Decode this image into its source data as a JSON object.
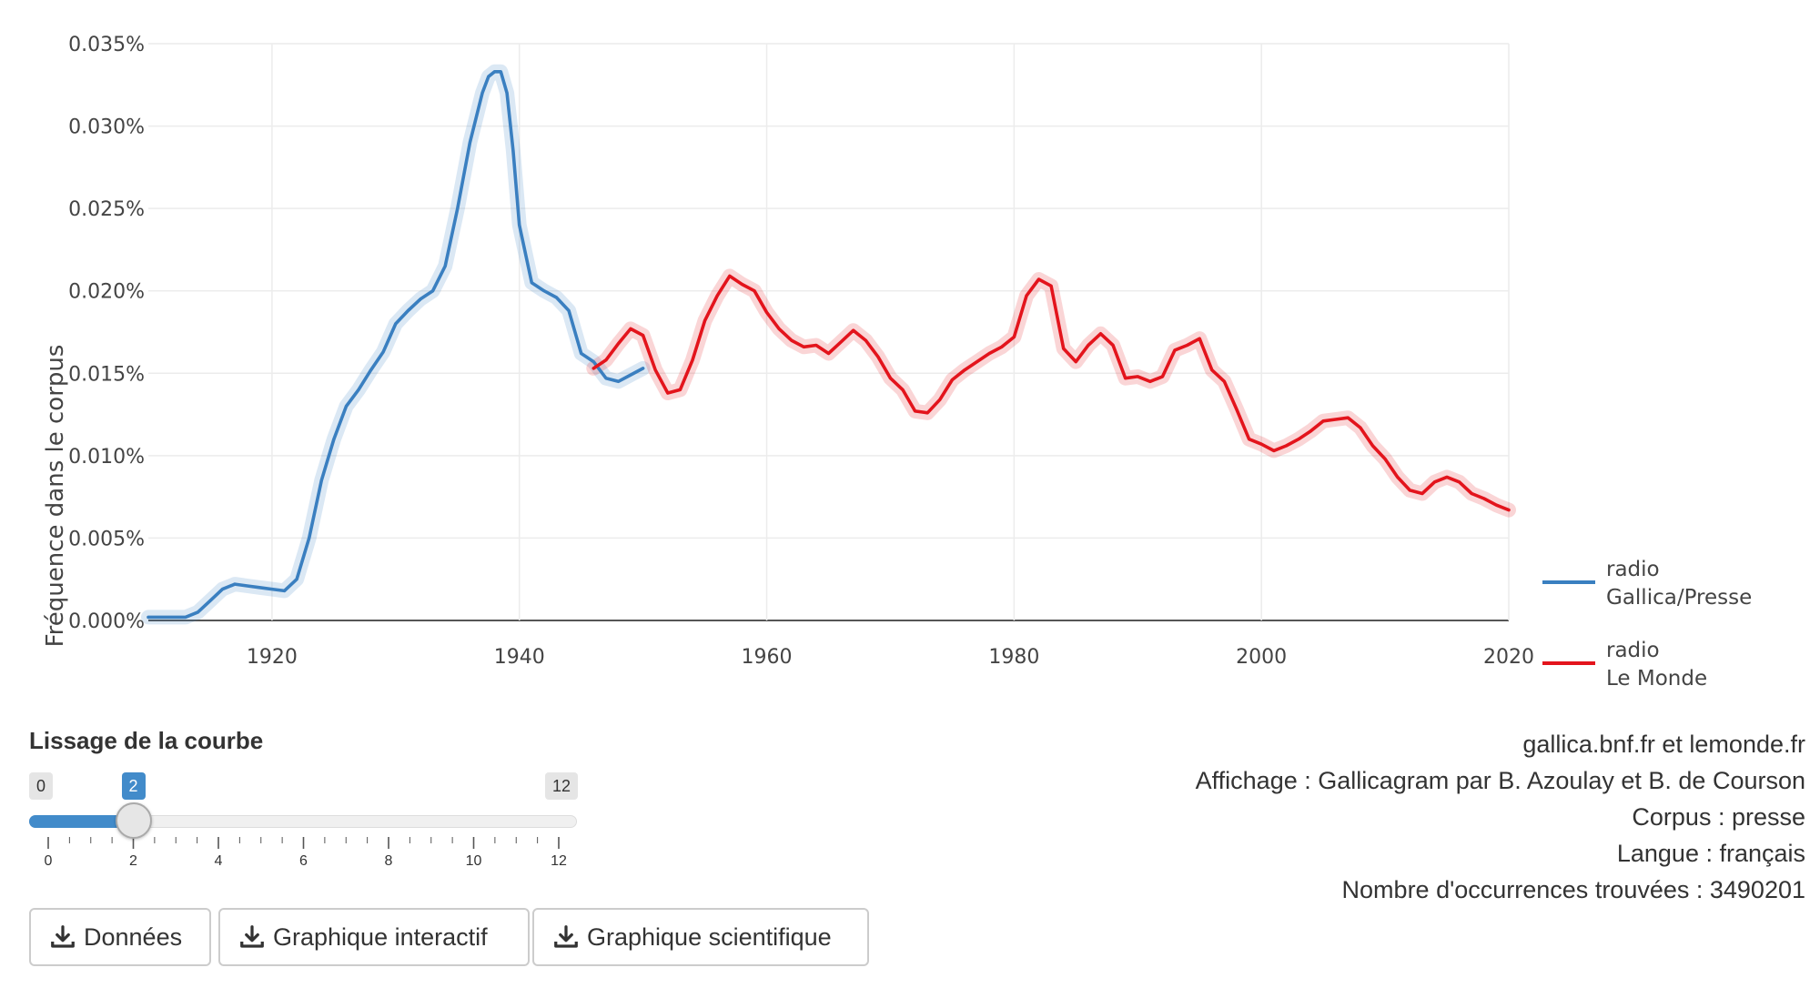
{
  "chart_data": {
    "type": "line",
    "title": "",
    "ylabel": "Fréquence dans le corpus",
    "xlabel": "",
    "xlim": [
      1910,
      2020
    ],
    "ylim": [
      0,
      0.035
    ],
    "x_ticks": [
      "1920",
      "1940",
      "1960",
      "1980",
      "2000",
      "2020"
    ],
    "y_ticks": [
      "0.000%",
      "0.005%",
      "0.010%",
      "0.015%",
      "0.020%",
      "0.025%",
      "0.030%",
      "0.035%"
    ],
    "grid": true,
    "legend_position": "right",
    "series": [
      {
        "name": "radio Gallica/Presse",
        "legend_lines": [
          "radio",
          "Gallica/Presse"
        ],
        "color": "#3a7fc0",
        "x": [
          1910,
          1913,
          1914,
          1915,
          1916,
          1917,
          1918,
          1919,
          1920,
          1921,
          1922,
          1923,
          1924,
          1925,
          1926,
          1927,
          1928,
          1929,
          1930,
          1931,
          1932,
          1933,
          1934,
          1935,
          1936,
          1937,
          1937.5,
          1938,
          1938.5,
          1939,
          1939.5,
          1940,
          1941,
          1942,
          1943,
          1944,
          1945,
          1946,
          1947,
          1948,
          1949,
          1950
        ],
        "values": [
          0.0002,
          0.0002,
          0.0005,
          0.0012,
          0.0019,
          0.0022,
          0.0021,
          0.002,
          0.0019,
          0.0018,
          0.0025,
          0.005,
          0.0085,
          0.011,
          0.013,
          0.014,
          0.0152,
          0.0163,
          0.018,
          0.0188,
          0.0195,
          0.02,
          0.0215,
          0.025,
          0.029,
          0.032,
          0.033,
          0.0333,
          0.0333,
          0.032,
          0.0285,
          0.024,
          0.0205,
          0.02,
          0.0196,
          0.0188,
          0.0162,
          0.0157,
          0.0147,
          0.0145,
          0.0149,
          0.0153
        ]
      },
      {
        "name": "radio Le Monde",
        "legend_lines": [
          "radio",
          "Le Monde"
        ],
        "color": "#e3141c",
        "x": [
          1946,
          1947,
          1948,
          1949,
          1950,
          1951,
          1952,
          1953,
          1954,
          1955,
          1956,
          1957,
          1958,
          1959,
          1960,
          1961,
          1962,
          1963,
          1964,
          1965,
          1966,
          1967,
          1968,
          1969,
          1970,
          1971,
          1972,
          1973,
          1974,
          1975,
          1976,
          1977,
          1978,
          1979,
          1980,
          1981,
          1982,
          1983,
          1984,
          1985,
          1986,
          1987,
          1988,
          1989,
          1990,
          1991,
          1992,
          1993,
          1994,
          1995,
          1996,
          1997,
          1998,
          1999,
          2000,
          2001,
          2002,
          2003,
          2004,
          2005,
          2006,
          2007,
          2008,
          2009,
          2010,
          2011,
          2012,
          2013,
          2014,
          2015,
          2016,
          2017,
          2018,
          2019,
          2020
        ],
        "values": [
          0.0153,
          0.0158,
          0.0168,
          0.0177,
          0.0173,
          0.0152,
          0.0138,
          0.014,
          0.0158,
          0.0182,
          0.0197,
          0.0209,
          0.0204,
          0.02,
          0.0187,
          0.0177,
          0.017,
          0.0166,
          0.0167,
          0.0162,
          0.0169,
          0.0176,
          0.017,
          0.016,
          0.0147,
          0.014,
          0.0127,
          0.0126,
          0.0134,
          0.0146,
          0.0152,
          0.0157,
          0.0162,
          0.0166,
          0.0172,
          0.0197,
          0.0207,
          0.0203,
          0.0165,
          0.0157,
          0.0167,
          0.0174,
          0.0167,
          0.0147,
          0.0148,
          0.0145,
          0.0148,
          0.0164,
          0.0167,
          0.0171,
          0.0152,
          0.0145,
          0.0128,
          0.011,
          0.0107,
          0.0103,
          0.0106,
          0.011,
          0.0115,
          0.0121,
          0.0122,
          0.0123,
          0.0117,
          0.0106,
          0.0098,
          0.0087,
          0.0079,
          0.0077,
          0.0084,
          0.0087,
          0.0084,
          0.0077,
          0.0074,
          0.007,
          0.0067
        ]
      }
    ]
  },
  "slider": {
    "title": "Lissage de la courbe",
    "min": 0,
    "max": 12,
    "value": 2,
    "min_label": "0",
    "max_label": "12",
    "value_label": "2",
    "tick_labels": [
      "0",
      "2",
      "4",
      "6",
      "8",
      "10",
      "12"
    ]
  },
  "buttons": {
    "data": "Données",
    "interactive": "Graphique interactif",
    "scientific": "Graphique scientifique"
  },
  "info": {
    "source": "gallica.bnf.fr et lemonde.fr",
    "display": "Affichage : Gallicagram par B. Azoulay et B. de Courson",
    "corpus": "Corpus : presse",
    "language": "Langue : français",
    "occurrences": "Nombre d'occurrences trouvées : 3490201"
  },
  "icons": {
    "download": "download-icon"
  },
  "colors": {
    "accent": "#428bca"
  }
}
